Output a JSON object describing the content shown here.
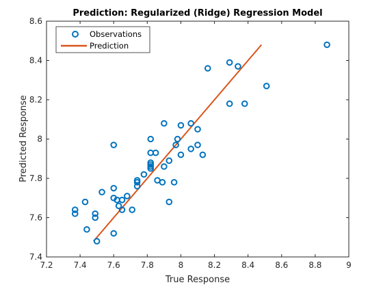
{
  "chart_data": {
    "type": "scatter",
    "title": "Prediction: Regularized (Ridge) Regression Model",
    "xlabel": "True Response",
    "ylabel": "Predicted Response",
    "xlim": [
      7.2,
      9
    ],
    "ylim": [
      7.4,
      8.6
    ],
    "xticks": [
      "7.2",
      "7.4",
      "7.6",
      "7.8",
      "8",
      "8.2",
      "8.4",
      "8.6",
      "8.8",
      "9"
    ],
    "yticks": [
      "7.4",
      "7.6",
      "7.8",
      "8",
      "8.2",
      "8.4",
      "8.6"
    ],
    "grid": false,
    "legend_position": "top-left",
    "series": [
      {
        "name": "Observations",
        "style": "circle-markers",
        "color": "#0072BD",
        "points": [
          [
            7.37,
            7.64
          ],
          [
            7.37,
            7.62
          ],
          [
            7.43,
            7.68
          ],
          [
            7.44,
            7.54
          ],
          [
            7.49,
            7.62
          ],
          [
            7.49,
            7.6
          ],
          [
            7.5,
            7.48
          ],
          [
            7.53,
            7.73
          ],
          [
            7.6,
            7.97
          ],
          [
            7.6,
            7.75
          ],
          [
            7.6,
            7.52
          ],
          [
            7.6,
            7.7
          ],
          [
            7.62,
            7.69
          ],
          [
            7.63,
            7.66
          ],
          [
            7.65,
            7.69
          ],
          [
            7.65,
            7.64
          ],
          [
            7.68,
            7.71
          ],
          [
            7.71,
            7.64
          ],
          [
            7.74,
            7.78
          ],
          [
            7.74,
            7.76
          ],
          [
            7.74,
            7.79
          ],
          [
            7.78,
            7.82
          ],
          [
            7.82,
            8.0
          ],
          [
            7.82,
            7.93
          ],
          [
            7.82,
            7.88
          ],
          [
            7.82,
            7.87
          ],
          [
            7.82,
            7.86
          ],
          [
            7.82,
            7.85
          ],
          [
            7.85,
            7.93
          ],
          [
            7.86,
            7.79
          ],
          [
            7.89,
            7.78
          ],
          [
            7.9,
            8.08
          ],
          [
            7.9,
            7.86
          ],
          [
            7.93,
            7.89
          ],
          [
            7.93,
            7.68
          ],
          [
            7.96,
            7.78
          ],
          [
            7.97,
            7.97
          ],
          [
            7.98,
            8.0
          ],
          [
            8.0,
            8.07
          ],
          [
            8.0,
            7.92
          ],
          [
            8.06,
            8.08
          ],
          [
            8.06,
            7.95
          ],
          [
            8.1,
            8.05
          ],
          [
            8.1,
            7.97
          ],
          [
            8.13,
            7.92
          ],
          [
            8.16,
            8.36
          ],
          [
            8.29,
            8.39
          ],
          [
            8.29,
            8.18
          ],
          [
            8.34,
            8.37
          ],
          [
            8.38,
            8.18
          ],
          [
            8.51,
            8.27
          ],
          [
            8.87,
            8.48
          ]
        ]
      },
      {
        "name": "Prediction",
        "style": "line",
        "color": "#D95319",
        "points": [
          [
            7.48,
            7.48
          ],
          [
            8.48,
            8.48
          ]
        ]
      }
    ]
  }
}
